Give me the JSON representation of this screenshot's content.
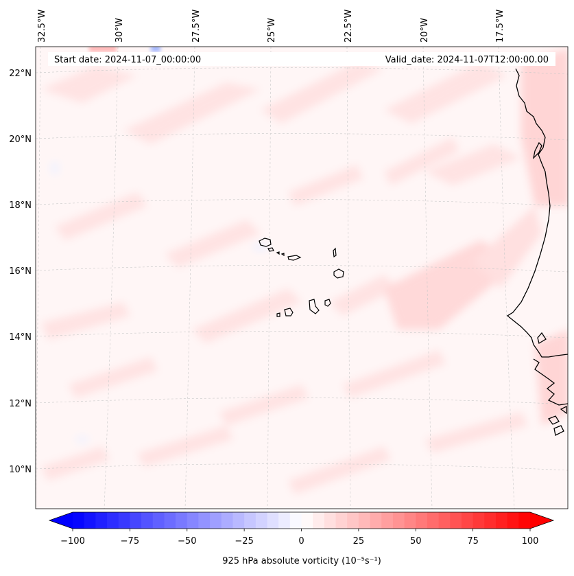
{
  "map": {
    "start_date": "Start date: 2024-11-07_00:00:00",
    "valid_date": "Valid_date: 2024-11-07T12:00:00.00",
    "lon_labels": [
      "32.5°W",
      "30°W",
      "27.5°W",
      "25°W",
      "22.5°W",
      "20°W",
      "17.5°W"
    ],
    "lat_labels": [
      "22°N",
      "20°N",
      "18°N",
      "16°N",
      "14°N",
      "12°N",
      "10°N"
    ],
    "region": {
      "lon_min": -33.0,
      "lon_max": -15.0,
      "lat_min": 9.0,
      "lat_max": 22.8
    },
    "landmarks": [
      {
        "name": "Cape Verde islands",
        "lon": -24.0,
        "lat": 16.0
      },
      {
        "name": "Dakar (Cap-Vert)",
        "lon": -17.45,
        "lat": 14.7
      }
    ]
  },
  "colorbar": {
    "label": "925 hPa absolute vorticity (10⁻⁵s⁻¹)",
    "min": -100,
    "max": 100,
    "tick_values": [
      -100,
      -75,
      -50,
      -25,
      0,
      25,
      50,
      75,
      100
    ],
    "tick_labels": [
      "−100",
      "−75",
      "−50",
      "−25",
      "0",
      "25",
      "50",
      "75",
      "100"
    ],
    "levels": 40,
    "colormap": "bwr",
    "color_low": "#0000ff",
    "color_mid": "#ffffff",
    "color_high": "#ff0000"
  },
  "colors": {
    "field_background": "#fff6f6",
    "field_patch": "#ffe3e3",
    "field_patch_strong": "#ffd5d5",
    "coast": "#000000",
    "grid": "#c8c8c8"
  }
}
